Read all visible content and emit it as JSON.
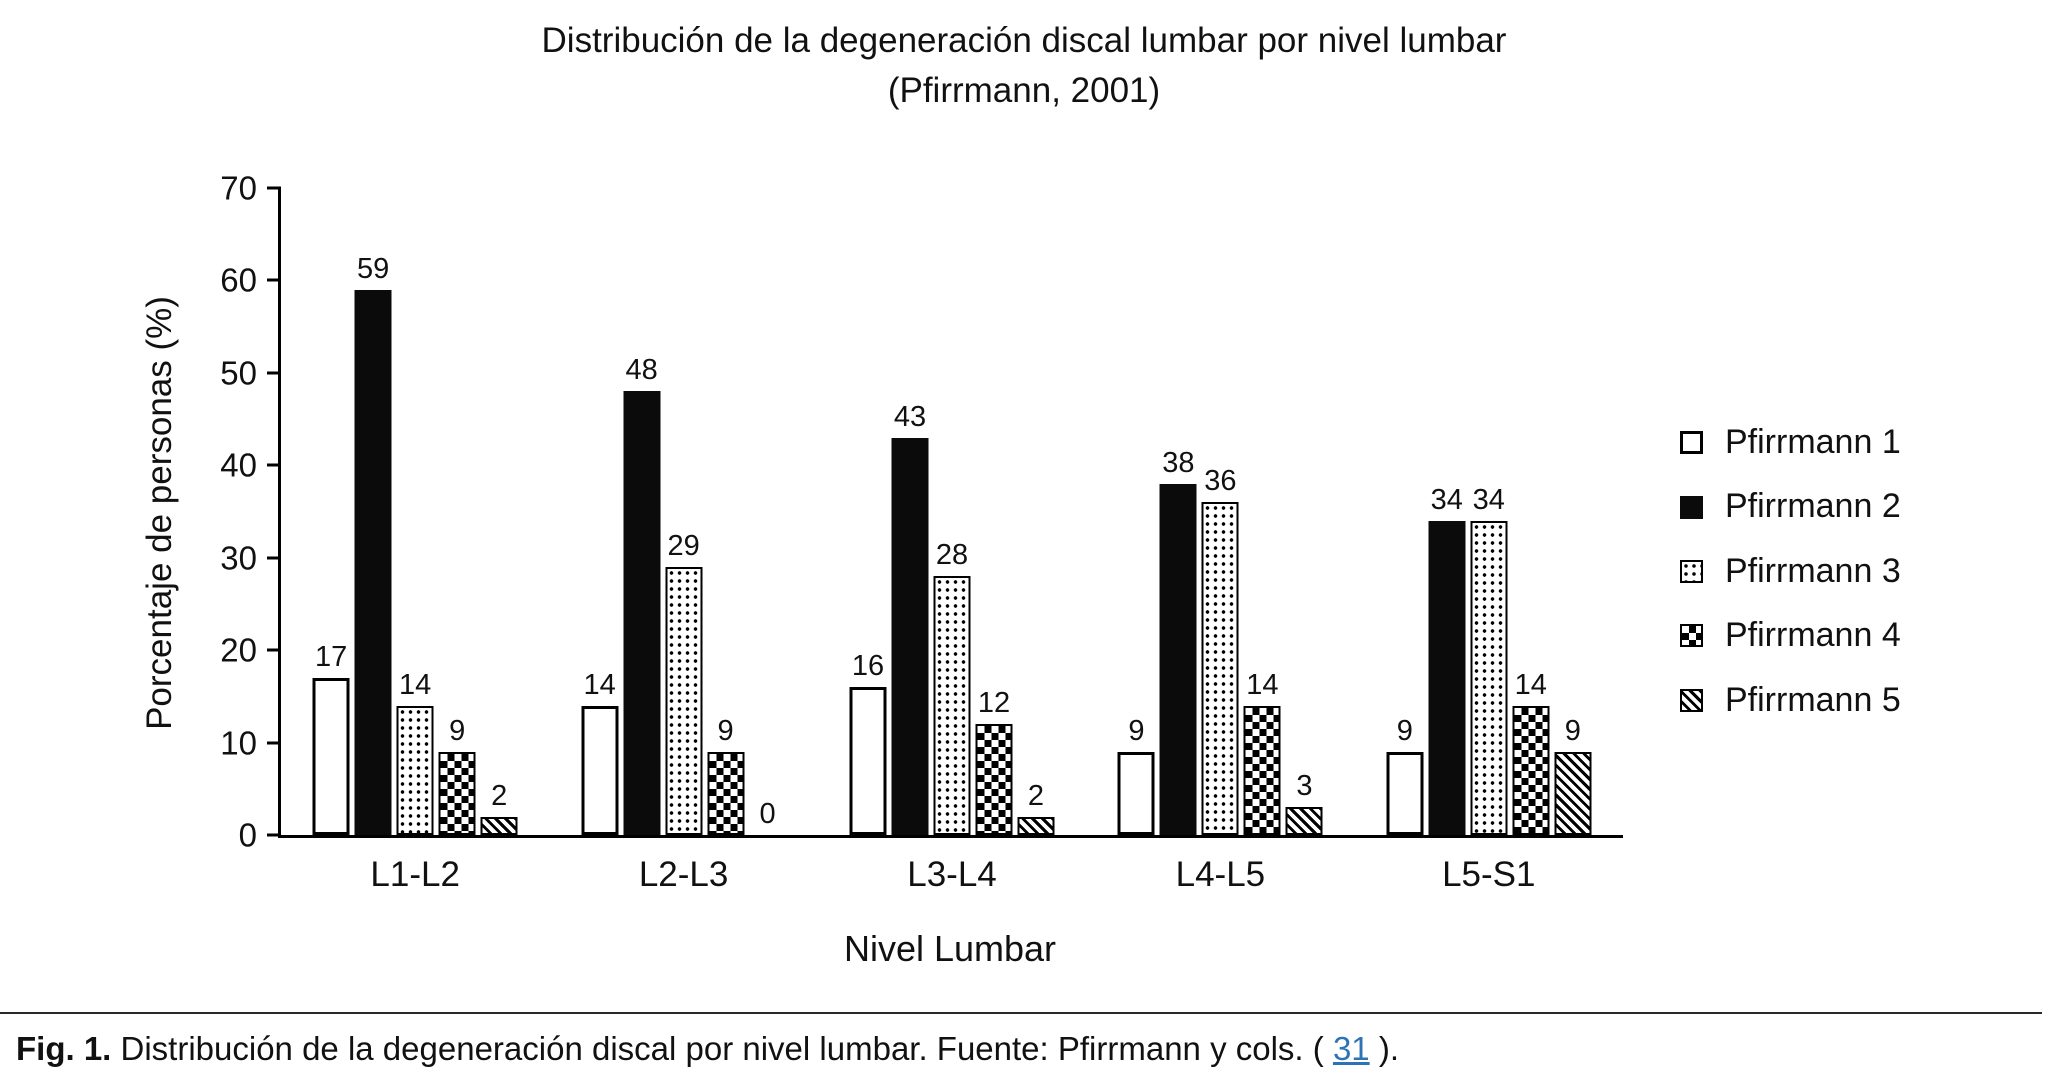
{
  "title": {
    "line1": "Distribución de la degeneración discal lumbar por nivel lumbar",
    "line2": "(Pfirrmann, 2001)"
  },
  "chart_data": {
    "type": "bar",
    "title": "Distribución de la degeneración discal lumbar por nivel lumbar (Pfirrmann, 2001)",
    "xlabel": "Nivel Lumbar",
    "ylabel": "Porcentaje de personas (%)",
    "categories": [
      "L1-L2",
      "L2-L3",
      "L3-L4",
      "L4-L5",
      "L5-S1"
    ],
    "series": [
      {
        "name": "Pfirrmann 1",
        "pattern": "open",
        "values": [
          17,
          14,
          16,
          9,
          9
        ]
      },
      {
        "name": "Pfirrmann 2",
        "pattern": "solid",
        "values": [
          59,
          48,
          43,
          38,
          34
        ]
      },
      {
        "name": "Pfirrmann 3",
        "pattern": "dots",
        "values": [
          14,
          29,
          28,
          36,
          34
        ]
      },
      {
        "name": "Pfirrmann 4",
        "pattern": "checker",
        "values": [
          9,
          9,
          12,
          14,
          14
        ]
      },
      {
        "name": "Pfirrmann 5",
        "pattern": "stripes",
        "values": [
          2,
          0,
          2,
          3,
          9
        ]
      }
    ],
    "ylim": [
      0,
      70
    ],
    "yticks": [
      0,
      10,
      20,
      30,
      40,
      50,
      60,
      70
    ],
    "grid": false,
    "legend_position": "right",
    "bar_colors": {
      "fill": "#0b0b0b",
      "outline": "#000000",
      "background": "#ffffff"
    }
  },
  "caption": {
    "fig_label": "Fig. 1.",
    "text": " Distribución de la degeneración discal por nivel lumbar. Fuente: Pfirrmann y cols. (",
    "link_text": "31",
    "suffix": ").",
    "link_color": "#2e74b5"
  }
}
